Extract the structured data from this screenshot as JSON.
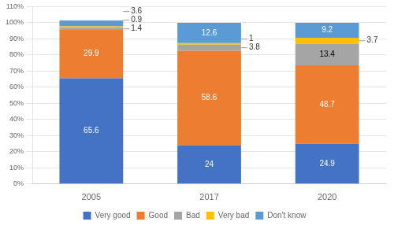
{
  "chart_data": {
    "type": "bar",
    "stacked": true,
    "categories": [
      "2005",
      "2017",
      "2020"
    ],
    "series": [
      {
        "name": "Very good",
        "color": "#4472C4",
        "values": [
          65.6,
          24.0,
          24.9
        ]
      },
      {
        "name": "Good",
        "color": "#ED7D31",
        "values": [
          29.9,
          58.6,
          48.7
        ]
      },
      {
        "name": "Bad",
        "color": "#A5A5A5",
        "values": [
          1.4,
          3.8,
          13.4
        ]
      },
      {
        "name": "Very bad",
        "color": "#FFC000",
        "values": [
          0.9,
          1.0,
          3.7
        ]
      },
      {
        "name": "Don't know",
        "color": "#5B9BD5",
        "values": [
          3.6,
          12.6,
          9.2
        ]
      }
    ],
    "ylim": [
      0,
      110
    ],
    "yticks": [
      {
        "value": 0,
        "label": "0%"
      },
      {
        "value": 10,
        "label": "10%"
      },
      {
        "value": 20,
        "label": "20%"
      },
      {
        "value": 30,
        "label": "30%"
      },
      {
        "value": 40,
        "label": "40%"
      },
      {
        "value": 50,
        "label": "50%"
      },
      {
        "value": 60,
        "label": "60%"
      },
      {
        "value": 70,
        "label": "70%"
      },
      {
        "value": 80,
        "label": "80%"
      },
      {
        "value": 90,
        "label": "90%"
      },
      {
        "value": 100,
        "label": "100%"
      },
      {
        "value": 110,
        "label": "110%"
      }
    ],
    "grid": true,
    "legend": "bottom",
    "data_labels": true
  }
}
